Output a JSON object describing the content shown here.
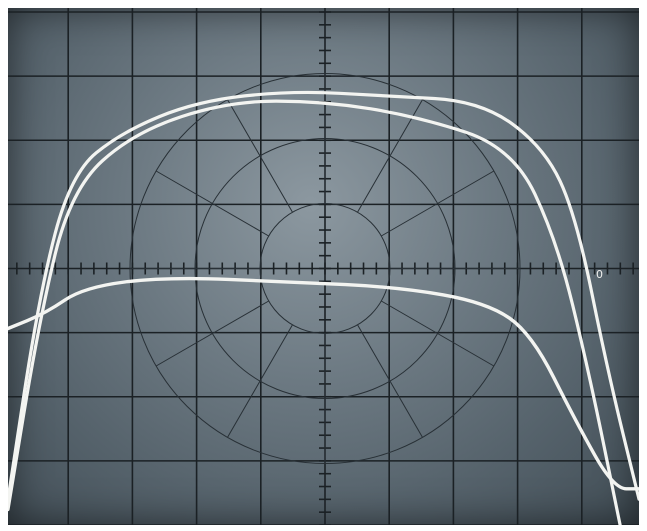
{
  "photo": {
    "subject": "oscilloscope-trace-photograph",
    "reticle_labels": {
      "left_marker": "",
      "right_marker": "0"
    },
    "colors": {
      "screen_glow": "#8c98a0",
      "screen_edge": "#414d55",
      "graticule": "#1b2125",
      "trace": "#f3f4f1"
    },
    "traces": [
      {
        "name": "",
        "points": [
          [
            0.0,
            0.95
          ],
          [
            0.05,
            0.55
          ],
          [
            0.1,
            0.32
          ],
          [
            0.18,
            0.24
          ],
          [
            0.3,
            0.18
          ],
          [
            0.45,
            0.16
          ],
          [
            0.6,
            0.17
          ],
          [
            0.75,
            0.18
          ],
          [
            0.85,
            0.27
          ],
          [
            0.9,
            0.4
          ],
          [
            0.95,
            0.7
          ],
          [
            1.0,
            0.95
          ]
        ]
      },
      {
        "name": "",
        "points": [
          [
            0.0,
            0.97
          ],
          [
            0.05,
            0.6
          ],
          [
            0.1,
            0.35
          ],
          [
            0.2,
            0.24
          ],
          [
            0.35,
            0.18
          ],
          [
            0.5,
            0.18
          ],
          [
            0.65,
            0.21
          ],
          [
            0.8,
            0.27
          ],
          [
            0.87,
            0.45
          ],
          [
            0.92,
            0.7
          ],
          [
            0.97,
            1.0
          ]
        ]
      },
      {
        "name": "",
        "points": [
          [
            0.0,
            0.62
          ],
          [
            0.06,
            0.59
          ],
          [
            0.12,
            0.54
          ],
          [
            0.25,
            0.52
          ],
          [
            0.45,
            0.53
          ],
          [
            0.62,
            0.54
          ],
          [
            0.76,
            0.57
          ],
          [
            0.83,
            0.63
          ],
          [
            0.9,
            0.8
          ],
          [
            0.96,
            0.93
          ],
          [
            1.0,
            0.93
          ]
        ]
      }
    ]
  }
}
